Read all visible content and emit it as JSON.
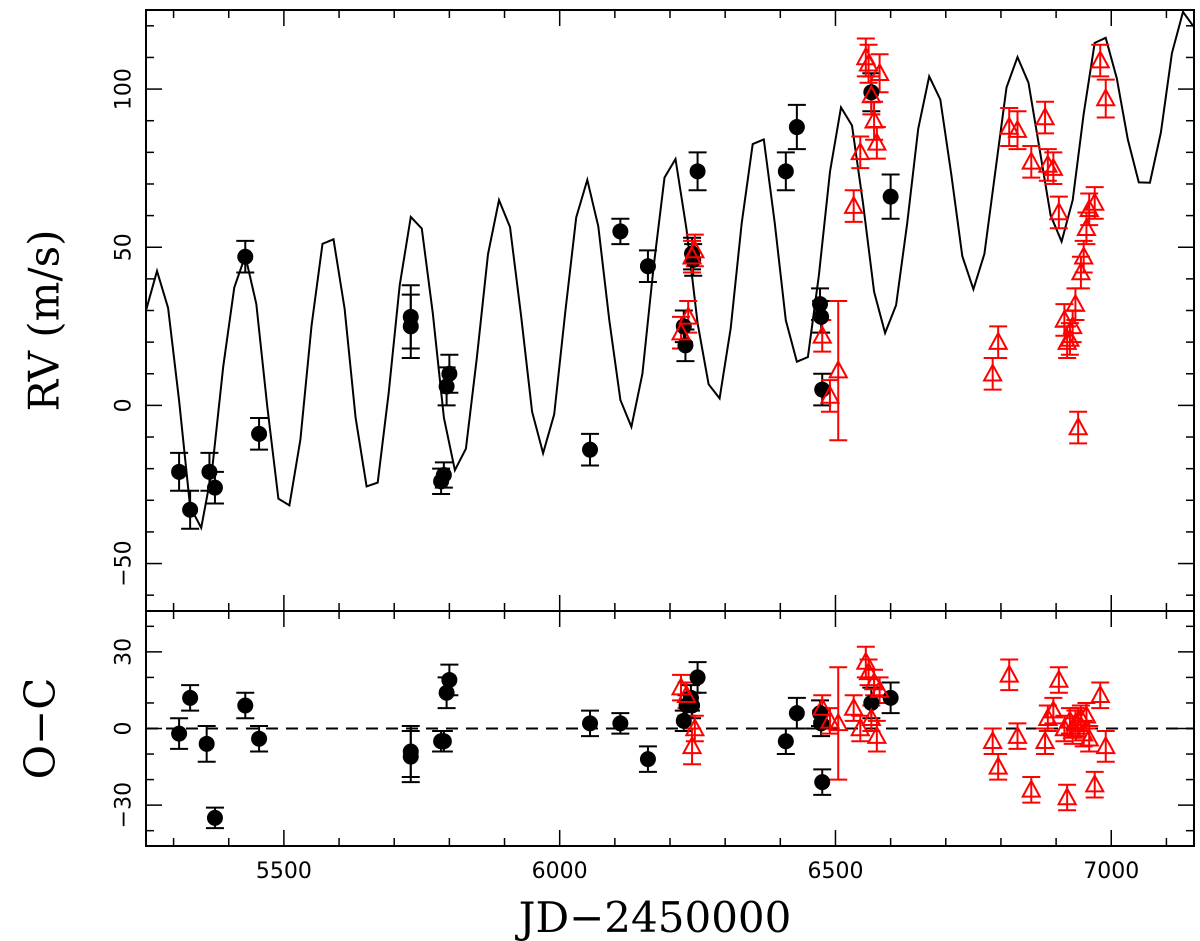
{
  "chart_data": [
    {
      "type": "scatter",
      "panel": "top",
      "ylabel": "RV  (m/s)",
      "xlim": [
        5250,
        7150
      ],
      "ylim": [
        -65,
        125
      ],
      "yticks": [
        -50,
        0,
        50,
        100
      ],
      "grid": false,
      "legend": "none",
      "model_curve": {
        "type": "line",
        "color": "#000000",
        "x": [
          5250,
          5270,
          5290,
          5310,
          5330,
          5350,
          5370,
          5390,
          5410,
          5430,
          5450,
          5470,
          5490,
          5510,
          5530,
          5550,
          5570,
          5590,
          5610,
          5630,
          5650,
          5670,
          5690,
          5710,
          5730,
          5750,
          5770,
          5790,
          5810,
          5830,
          5850,
          5870,
          5890,
          5910,
          5930,
          5950,
          5970,
          5990,
          6010,
          6030,
          6050,
          6070,
          6090,
          6110,
          6130,
          6150,
          6170,
          6190,
          6210,
          6230,
          6250,
          6270,
          6290,
          6310,
          6330,
          6350,
          6370,
          6390,
          6410,
          6430,
          6450,
          6470,
          6490,
          6510,
          6530,
          6550,
          6570,
          6590,
          6610,
          6630,
          6650,
          6670,
          6690,
          6710,
          6730,
          6750,
          6770,
          6790,
          6810,
          6830,
          6850,
          6870,
          6890,
          6910,
          6930,
          6950,
          6970,
          6990,
          7010,
          7030,
          7050,
          7070,
          7090,
          7110,
          7130,
          7150
        ],
        "y": [
          30.0,
          42.5,
          30.8,
          1.5,
          -32.0,
          -38.7,
          -20.1,
          12.2,
          37.3,
          47.3,
          32.1,
          -0.4,
          -29.5,
          -31.6,
          -10.8,
          25.1,
          51.1,
          52.5,
          30.6,
          -3.9,
          -25.6,
          -24.4,
          4.0,
          38.0,
          59.6,
          55.9,
          29.1,
          -3.9,
          -20.5,
          -13.7,
          15.2,
          47.8,
          64.9,
          56.4,
          28.3,
          -2.0,
          -15.1,
          -2.8,
          29.3,
          59.4,
          71.3,
          56.6,
          26.9,
          1.7,
          -6.8,
          10.0,
          43.5,
          72.0,
          77.9,
          55.7,
          26.0,
          6.7,
          2.2,
          24.4,
          57.6,
          82.6,
          84.1,
          57.5,
          26.9,
          13.8,
          15.3,
          41.2,
          73.9,
          94.2,
          88.5,
          63.7,
          35.9,
          22.9,
          31.7,
          57.6,
          87.4,
          104.0,
          96.7,
          73.0,
          47.2,
          36.7,
          47.9,
          74.1,
          100.5,
          110.1,
          102.0,
          81.0,
          60.1,
          51.8,
          64.9,
          92.2,
          114.6,
          116.2,
          103.4,
          84.1,
          70.5,
          70.4,
          86.3,
          111.3,
          124.4,
          119.6
        ]
      },
      "series": [
        {
          "marker": "filled-circle",
          "color": "#000000",
          "x": [
            5310,
            5330,
            5365,
            5375,
            5430,
            5455,
            5730,
            5730,
            5785,
            5790,
            5795,
            5800,
            6055,
            6110,
            6160,
            6225,
            6228,
            6240,
            6242,
            6250,
            6410,
            6430,
            6472,
            6474,
            6476,
            6565,
            6600
          ],
          "y": [
            -21,
            -33,
            -21,
            -26,
            47,
            -9,
            28,
            25,
            -24,
            -22,
            6,
            10,
            -14,
            55,
            44,
            25,
            19,
            48,
            46,
            74,
            74,
            88,
            32,
            28,
            5,
            99,
            66
          ],
          "err": [
            6,
            6,
            6,
            5,
            5,
            5,
            10,
            10,
            4,
            4,
            6,
            6,
            5,
            4,
            5,
            5,
            5,
            5,
            5,
            6,
            6,
            7,
            5,
            5,
            5,
            6,
            7
          ]
        },
        {
          "marker": "open-triangle",
          "color": "#ff0000",
          "x": [
            6220,
            6233,
            6240,
            6245,
            6476,
            6490,
            6505,
            6533,
            6545,
            6555,
            6560,
            6565,
            6570,
            6575,
            6580,
            6785,
            6795,
            6815,
            6830,
            6855,
            6880,
            6885,
            6895,
            6905,
            6915,
            6920,
            6925,
            6930,
            6935,
            6940,
            6945,
            6950,
            6955,
            6960,
            6970,
            6980,
            6990
          ],
          "y": [
            23,
            28,
            47,
            49,
            22,
            3,
            11,
            63,
            80,
            110,
            108,
            98,
            90,
            83,
            105,
            10,
            20,
            88,
            87,
            77,
            91,
            76,
            75,
            61,
            27,
            20,
            21,
            25,
            32,
            -7,
            42,
            47,
            56,
            62,
            64,
            109,
            97
          ],
          "err": [
            5,
            5,
            5,
            5,
            5,
            5,
            22,
            5,
            5,
            6,
            6,
            6,
            6,
            5,
            6,
            5,
            5,
            6,
            6,
            5,
            5,
            5,
            5,
            5,
            5,
            5,
            5,
            5,
            5,
            5,
            5,
            5,
            5,
            5,
            5,
            5,
            6
          ]
        }
      ]
    },
    {
      "type": "scatter",
      "panel": "bottom",
      "xlabel": "JD−2450000",
      "ylabel": "O−C",
      "xlim": [
        5250,
        7150
      ],
      "ylim": [
        -46,
        46
      ],
      "xticks": [
        5500,
        6000,
        6500,
        7000
      ],
      "yticks": [
        -30,
        0,
        30
      ],
      "grid": false,
      "legend": "none",
      "reference_line": {
        "y": 0,
        "style": "dashed",
        "color": "#000000"
      },
      "series": [
        {
          "marker": "filled-circle",
          "color": "#000000",
          "x": [
            5310,
            5330,
            5360,
            5375,
            5430,
            5455,
            5730,
            5730,
            5785,
            5790,
            5795,
            5800,
            6055,
            6110,
            6160,
            6225,
            6230,
            6238,
            6240,
            6250,
            6410,
            6430,
            6472,
            6474,
            6476,
            6565,
            6600
          ],
          "y": [
            -2,
            12,
            -6,
            -35,
            9,
            -4,
            -9,
            -11,
            -5,
            -5,
            14,
            19,
            2,
            2,
            -12,
            3,
            9,
            12,
            9,
            20,
            -5,
            6,
            6,
            2,
            -21,
            10,
            12
          ],
          "err": [
            6,
            5,
            7,
            4,
            5,
            5,
            10,
            10,
            4,
            4,
            6,
            6,
            5,
            4,
            5,
            4,
            4,
            5,
            5,
            6,
            5,
            6,
            5,
            5,
            5,
            6,
            6
          ]
        },
        {
          "marker": "open-triangle",
          "color": "#ff0000",
          "x": [
            6220,
            6230,
            6240,
            6245,
            6476,
            6490,
            6505,
            6533,
            6545,
            6555,
            6560,
            6565,
            6570,
            6575,
            6580,
            6785,
            6795,
            6815,
            6830,
            6855,
            6880,
            6885,
            6895,
            6905,
            6915,
            6920,
            6925,
            6930,
            6935,
            6940,
            6945,
            6950,
            6955,
            6960,
            6970,
            6980,
            6990
          ],
          "y": [
            16,
            13,
            -7,
            0,
            8,
            3,
            2,
            8,
            0,
            26,
            22,
            4,
            18,
            -3,
            15,
            -5,
            -15,
            21,
            -3,
            -24,
            -5,
            4,
            7,
            19,
            0,
            -27,
            3,
            -1,
            2,
            3,
            4,
            -2,
            5,
            -4,
            -22,
            13,
            -7
          ],
          "err": [
            5,
            5,
            7,
            5,
            5,
            5,
            22,
            5,
            5,
            6,
            5,
            5,
            5,
            6,
            5,
            5,
            5,
            6,
            5,
            5,
            5,
            5,
            5,
            5,
            5,
            5,
            5,
            5,
            5,
            5,
            5,
            5,
            5,
            5,
            5,
            5,
            6
          ]
        }
      ]
    }
  ]
}
